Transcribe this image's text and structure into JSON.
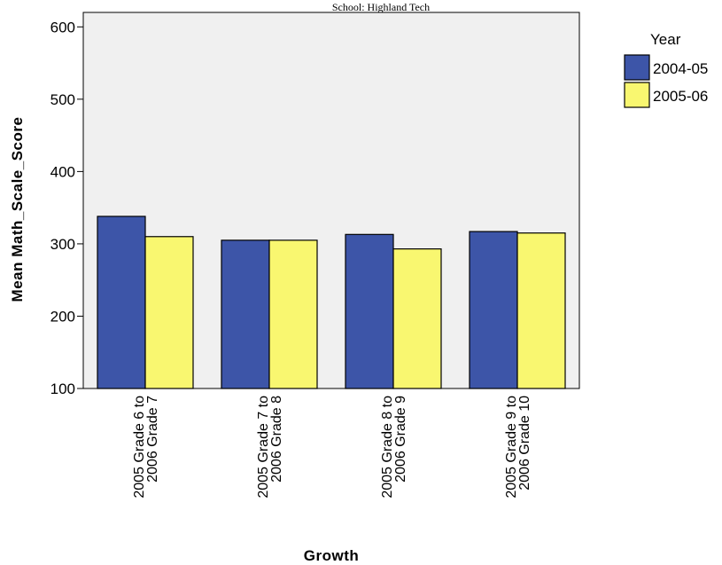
{
  "chart_data": {
    "type": "bar",
    "title": "School: Highland Tech",
    "xlabel": "Growth",
    "ylabel": "Mean Math_Scale_Score",
    "categories": [
      [
        "2005 Grade 6 to",
        "2006 Grade 7"
      ],
      [
        "2005 Grade 7 to",
        "2006 Grade 8"
      ],
      [
        "2005 Grade 8 to",
        "2006 Grade 9"
      ],
      [
        "2005 Grade 9 to",
        "2006 Grade 10"
      ]
    ],
    "series": [
      {
        "name": "2004-05",
        "color": "#3d55a8",
        "values": [
          338,
          305,
          313,
          317
        ]
      },
      {
        "name": "2005-06",
        "color": "#f9f770",
        "values": [
          310,
          305,
          293,
          315
        ]
      }
    ],
    "ylim": [
      100,
      620
    ],
    "yticks": [
      100,
      200,
      300,
      400,
      500,
      600
    ],
    "legend": {
      "title": "Year",
      "placement": "top-right"
    },
    "plot_background": "#f0f0f0",
    "grid": false
  }
}
